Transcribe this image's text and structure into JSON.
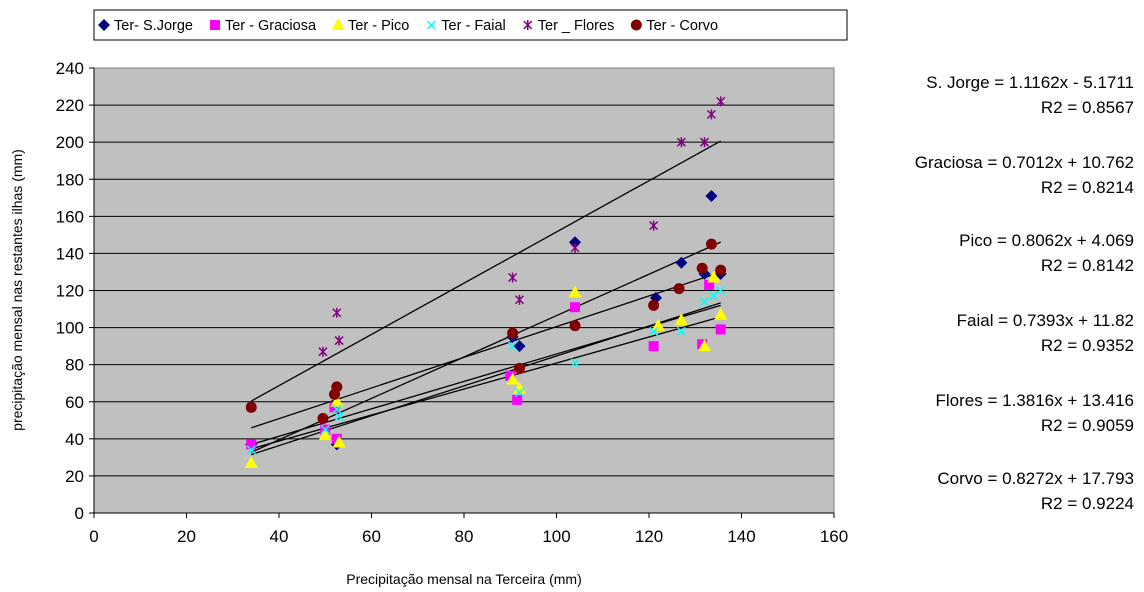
{
  "chart_data": {
    "type": "scatter",
    "title": "",
    "xlabel": "Precipitação mensal na Terceira (mm)",
    "ylabel": "precipitação mensal nas restantes ilhas (mm)",
    "xlim": [
      0,
      160
    ],
    "ylim": [
      0,
      240
    ],
    "xticks": [
      0,
      20,
      40,
      60,
      80,
      100,
      120,
      140,
      160
    ],
    "yticks": [
      0,
      20,
      40,
      60,
      80,
      100,
      120,
      140,
      160,
      180,
      200,
      220,
      240
    ],
    "grid": "horizontal",
    "legend_position": "top",
    "plot_background": "#c0c0c0",
    "series": [
      {
        "name": "Ter- S.Jorge",
        "marker": "diamond",
        "color": "#000080",
        "x": [
          34,
          52.5,
          90.5,
          92,
          104,
          121.5,
          127,
          132,
          133.5,
          135.5
        ],
        "y": [
          37,
          37,
          95,
          90,
          146,
          116,
          135,
          129,
          171,
          129
        ],
        "trend_x": [
          34,
          135.5
        ]
      },
      {
        "name": "Ter - Graciosa",
        "marker": "square",
        "color": "#ff00ff",
        "x": [
          34,
          50,
          52,
          52.5,
          90,
          91.5,
          104,
          121,
          131.5,
          133,
          135.5
        ],
        "y": [
          37,
          45,
          57,
          40,
          74,
          61,
          111,
          90,
          91,
          123,
          99
        ],
        "trend_x": [
          34,
          135.5
        ]
      },
      {
        "name": "Ter - Pico",
        "marker": "triangle",
        "color": "#ffff00",
        "x": [
          34,
          50,
          52.5,
          53,
          90.5,
          92,
          104,
          122,
          127,
          132,
          134,
          135.5
        ],
        "y": [
          27,
          42,
          60,
          38,
          72,
          67,
          119,
          101,
          104,
          90,
          127,
          107
        ],
        "trend_x": [
          34,
          135.5
        ]
      },
      {
        "name": "Ter - Faial",
        "marker": "x",
        "color": "#00ffff",
        "x": [
          34,
          50,
          52.5,
          53,
          90.5,
          92,
          104,
          121,
          127,
          132,
          134,
          135.5
        ],
        "y": [
          34,
          45,
          56,
          52,
          90,
          65,
          81,
          98,
          98,
          114,
          117,
          120
        ],
        "trend_x": [
          34,
          135.5
        ]
      },
      {
        "name": "Ter _ Flores",
        "marker": "star",
        "color": "#800080",
        "x": [
          34,
          49.5,
          52.5,
          53,
          90.5,
          92,
          104,
          121,
          127,
          132,
          133.5,
          135.5
        ],
        "y": [
          57,
          87,
          108,
          93,
          127,
          115,
          143,
          155,
          200,
          200,
          215,
          222
        ],
        "trend_x": [
          34,
          135.5
        ]
      },
      {
        "name": "Ter - Corvo",
        "marker": "circle",
        "color": "#800000",
        "x": [
          34,
          49.5,
          52,
          52.5,
          90.5,
          92,
          104,
          121,
          126.5,
          131.5,
          133.5,
          135.5
        ],
        "y": [
          57,
          51,
          64,
          68,
          97,
          78,
          101,
          112,
          121,
          132,
          145,
          131
        ],
        "trend_x": [
          34,
          135.5
        ]
      }
    ],
    "trendlines": [
      {
        "series": "S. Jorge",
        "slope": 1.1162,
        "intercept": -5.1711
      },
      {
        "series": "Graciosa",
        "slope": 0.7012,
        "intercept": 10.762
      },
      {
        "series": "Pico",
        "slope": 0.8062,
        "intercept": 4.069
      },
      {
        "series": "Faial",
        "slope": 0.7393,
        "intercept": 11.82
      },
      {
        "series": "Flores",
        "slope": 1.3816,
        "intercept": 13.416
      },
      {
        "series": "Corvo",
        "slope": 0.8272,
        "intercept": 17.793
      }
    ],
    "equations": [
      {
        "eq": "S. Jorge = 1.1162x - 5.1711",
        "r2": "R2 = 0.8567"
      },
      {
        "eq": "Graciosa = 0.7012x + 10.762",
        "r2": "R2 = 0.8214"
      },
      {
        "eq": "Pico = 0.8062x + 4.069",
        "r2": "R2 = 0.8142"
      },
      {
        "eq": "Faial = 0.7393x + 11.82",
        "r2": "R2 = 0.9352"
      },
      {
        "eq": "Flores = 1.3816x + 13.416",
        "r2": "R2 = 0.9059"
      },
      {
        "eq": "Corvo = 0.8272x + 17.793",
        "r2": "R2 = 0.9224"
      }
    ]
  }
}
